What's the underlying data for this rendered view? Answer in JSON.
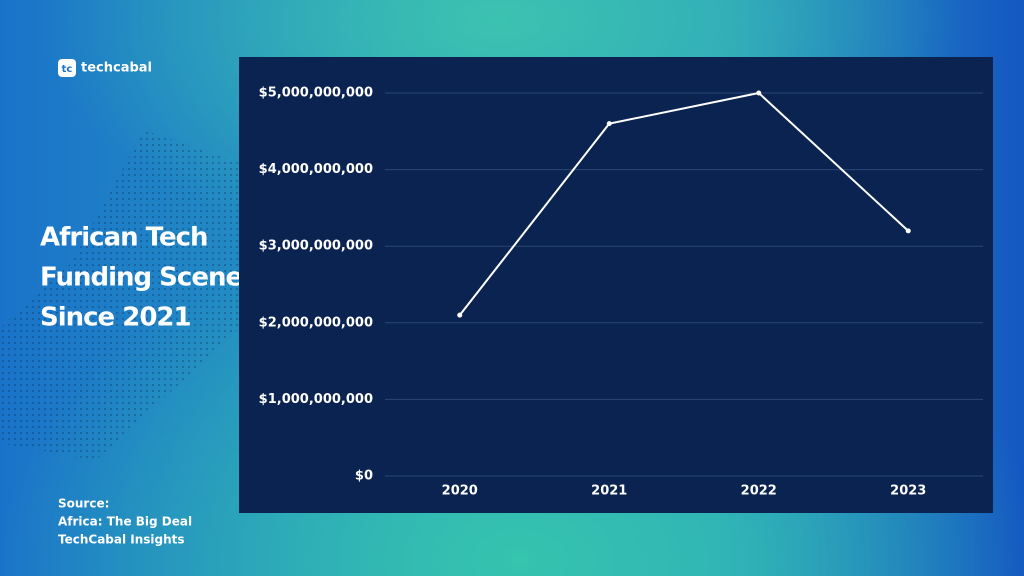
{
  "logo": {
    "mark": "tc",
    "text": "techcabal"
  },
  "headline": [
    "African Tech",
    "Funding Scene",
    "Since 2021"
  ],
  "source": [
    "Source:",
    "Africa: The Big Deal",
    "TechCabal Insights"
  ],
  "chart_data": {
    "type": "line",
    "categories": [
      "2020",
      "2021",
      "2022",
      "2023"
    ],
    "values": [
      2100000000,
      4600000000,
      5000000000,
      3200000000
    ],
    "color": "#ffffff",
    "ylim": [
      0,
      5000000000
    ],
    "yticks": [
      {
        "value": 0,
        "label": "$0"
      },
      {
        "value": 1000000000,
        "label": "$1,000,000,000"
      },
      {
        "value": 2000000000,
        "label": "$2,000,000,000"
      },
      {
        "value": 3000000000,
        "label": "$3,000,000,000"
      },
      {
        "value": 4000000000,
        "label": "$4,000,000,000"
      },
      {
        "value": 5000000000,
        "label": "$5,000,000,000"
      }
    ],
    "grid": true
  }
}
